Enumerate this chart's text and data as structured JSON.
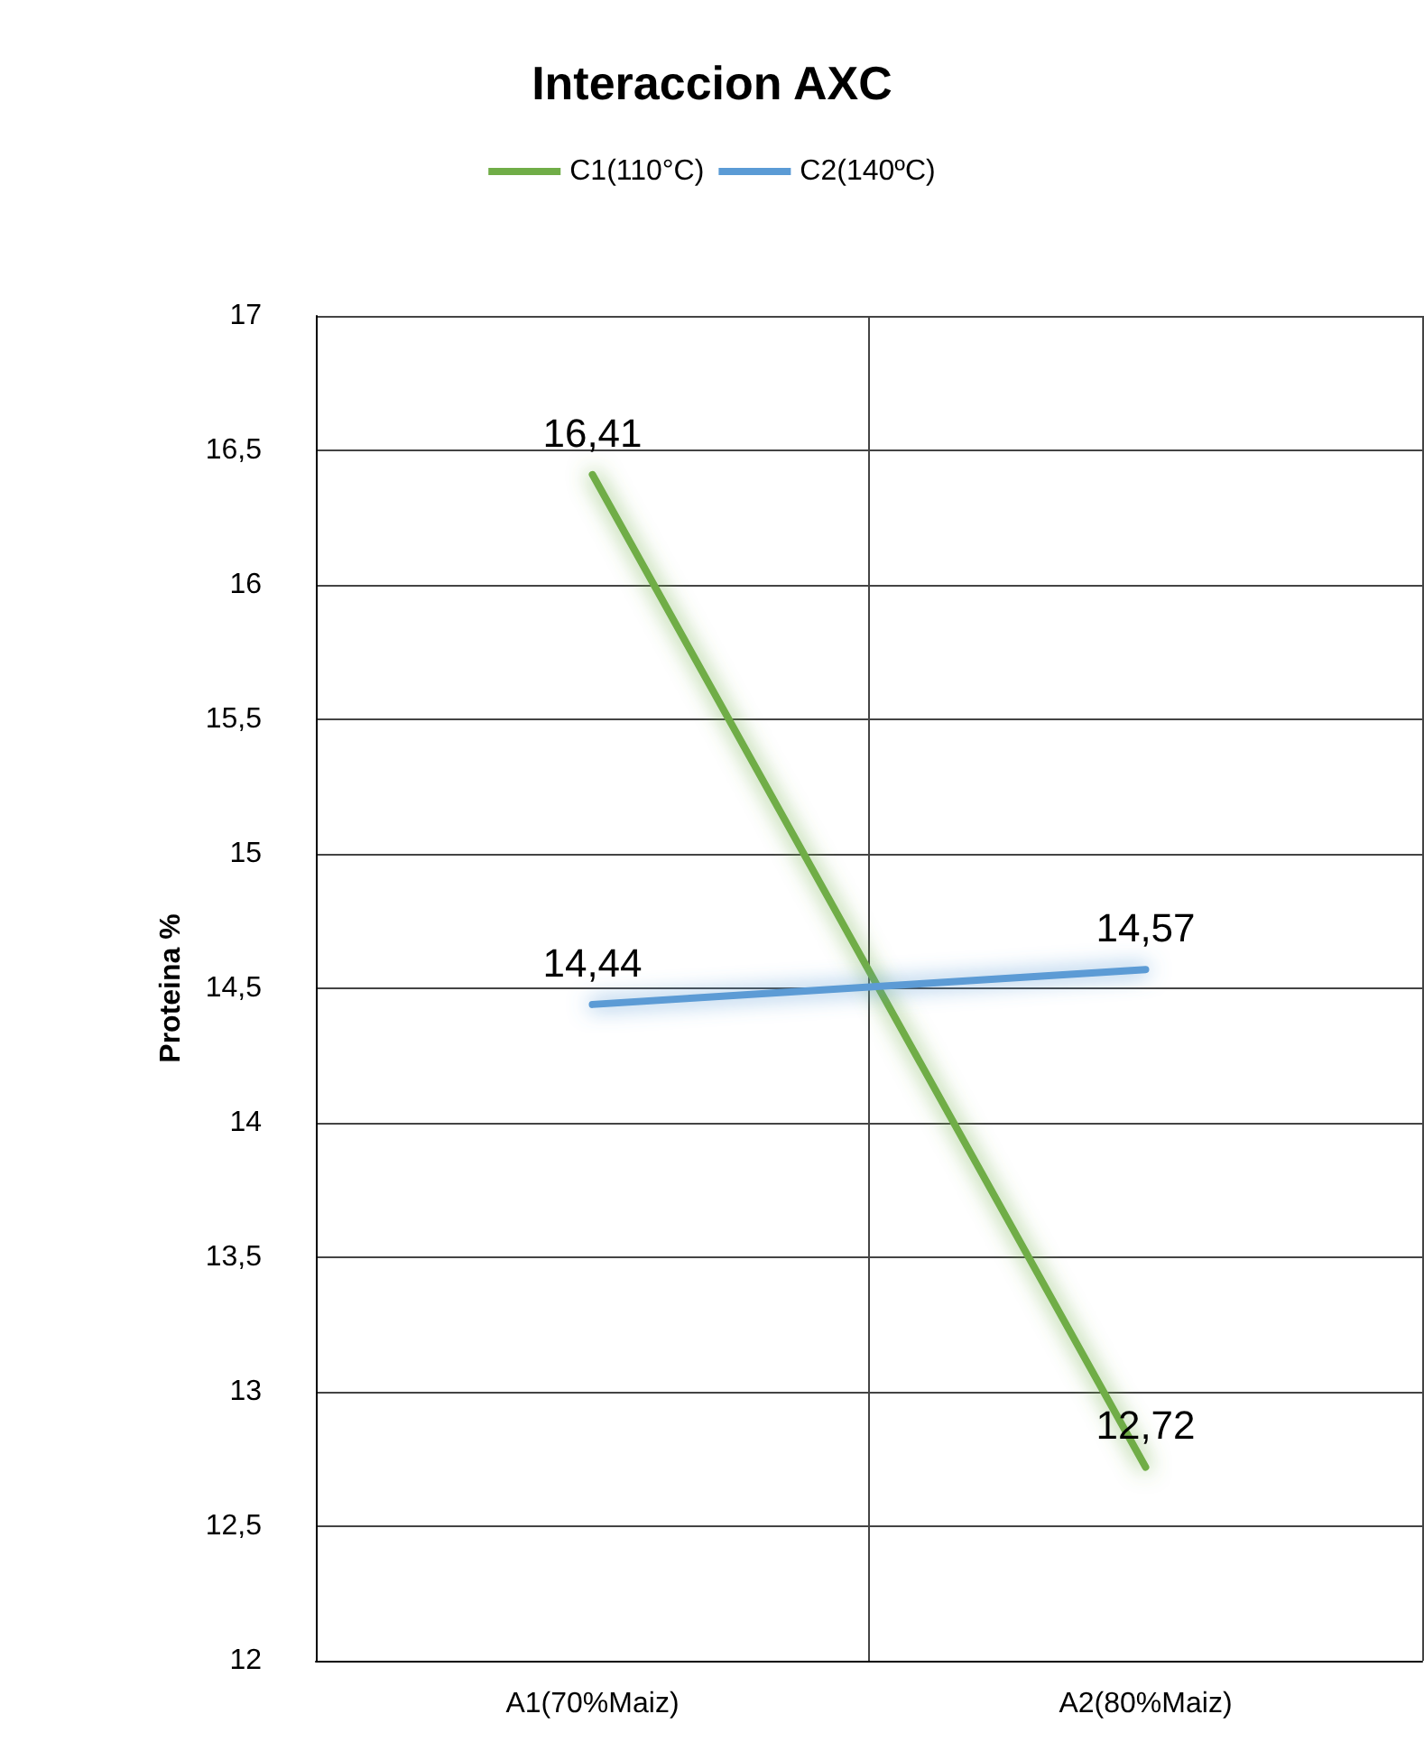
{
  "chart_data": {
    "type": "line",
    "title": "Interaccion AXC",
    "ylabel": "Proteina %",
    "categories": [
      "A1(70%Maiz)",
      "A2(80%Maiz)"
    ],
    "series": [
      {
        "name": "C1(110°C)",
        "color": "#70ad47",
        "values": [
          16.41,
          12.72
        ],
        "value_labels": [
          "16,41",
          "12,72"
        ]
      },
      {
        "name": "C2(140ºC)",
        "color": "#5b9bd5",
        "values": [
          14.44,
          14.57
        ],
        "value_labels": [
          "14,44",
          "14,57"
        ]
      }
    ],
    "ylim": [
      12,
      17
    ],
    "yticks": [
      {
        "value": 12,
        "label": "12"
      },
      {
        "value": 12.5,
        "label": "12,5"
      },
      {
        "value": 13,
        "label": "13"
      },
      {
        "value": 13.5,
        "label": "13,5"
      },
      {
        "value": 14,
        "label": "14"
      },
      {
        "value": 14.5,
        "label": "14,5"
      },
      {
        "value": 15,
        "label": "15"
      },
      {
        "value": 15.5,
        "label": "15,5"
      },
      {
        "value": 16,
        "label": "16"
      },
      {
        "value": 16.5,
        "label": "16,5"
      },
      {
        "value": 17,
        "label": "17"
      }
    ],
    "grid": true,
    "legend": "top",
    "marker": "none",
    "line_style": "solid"
  }
}
